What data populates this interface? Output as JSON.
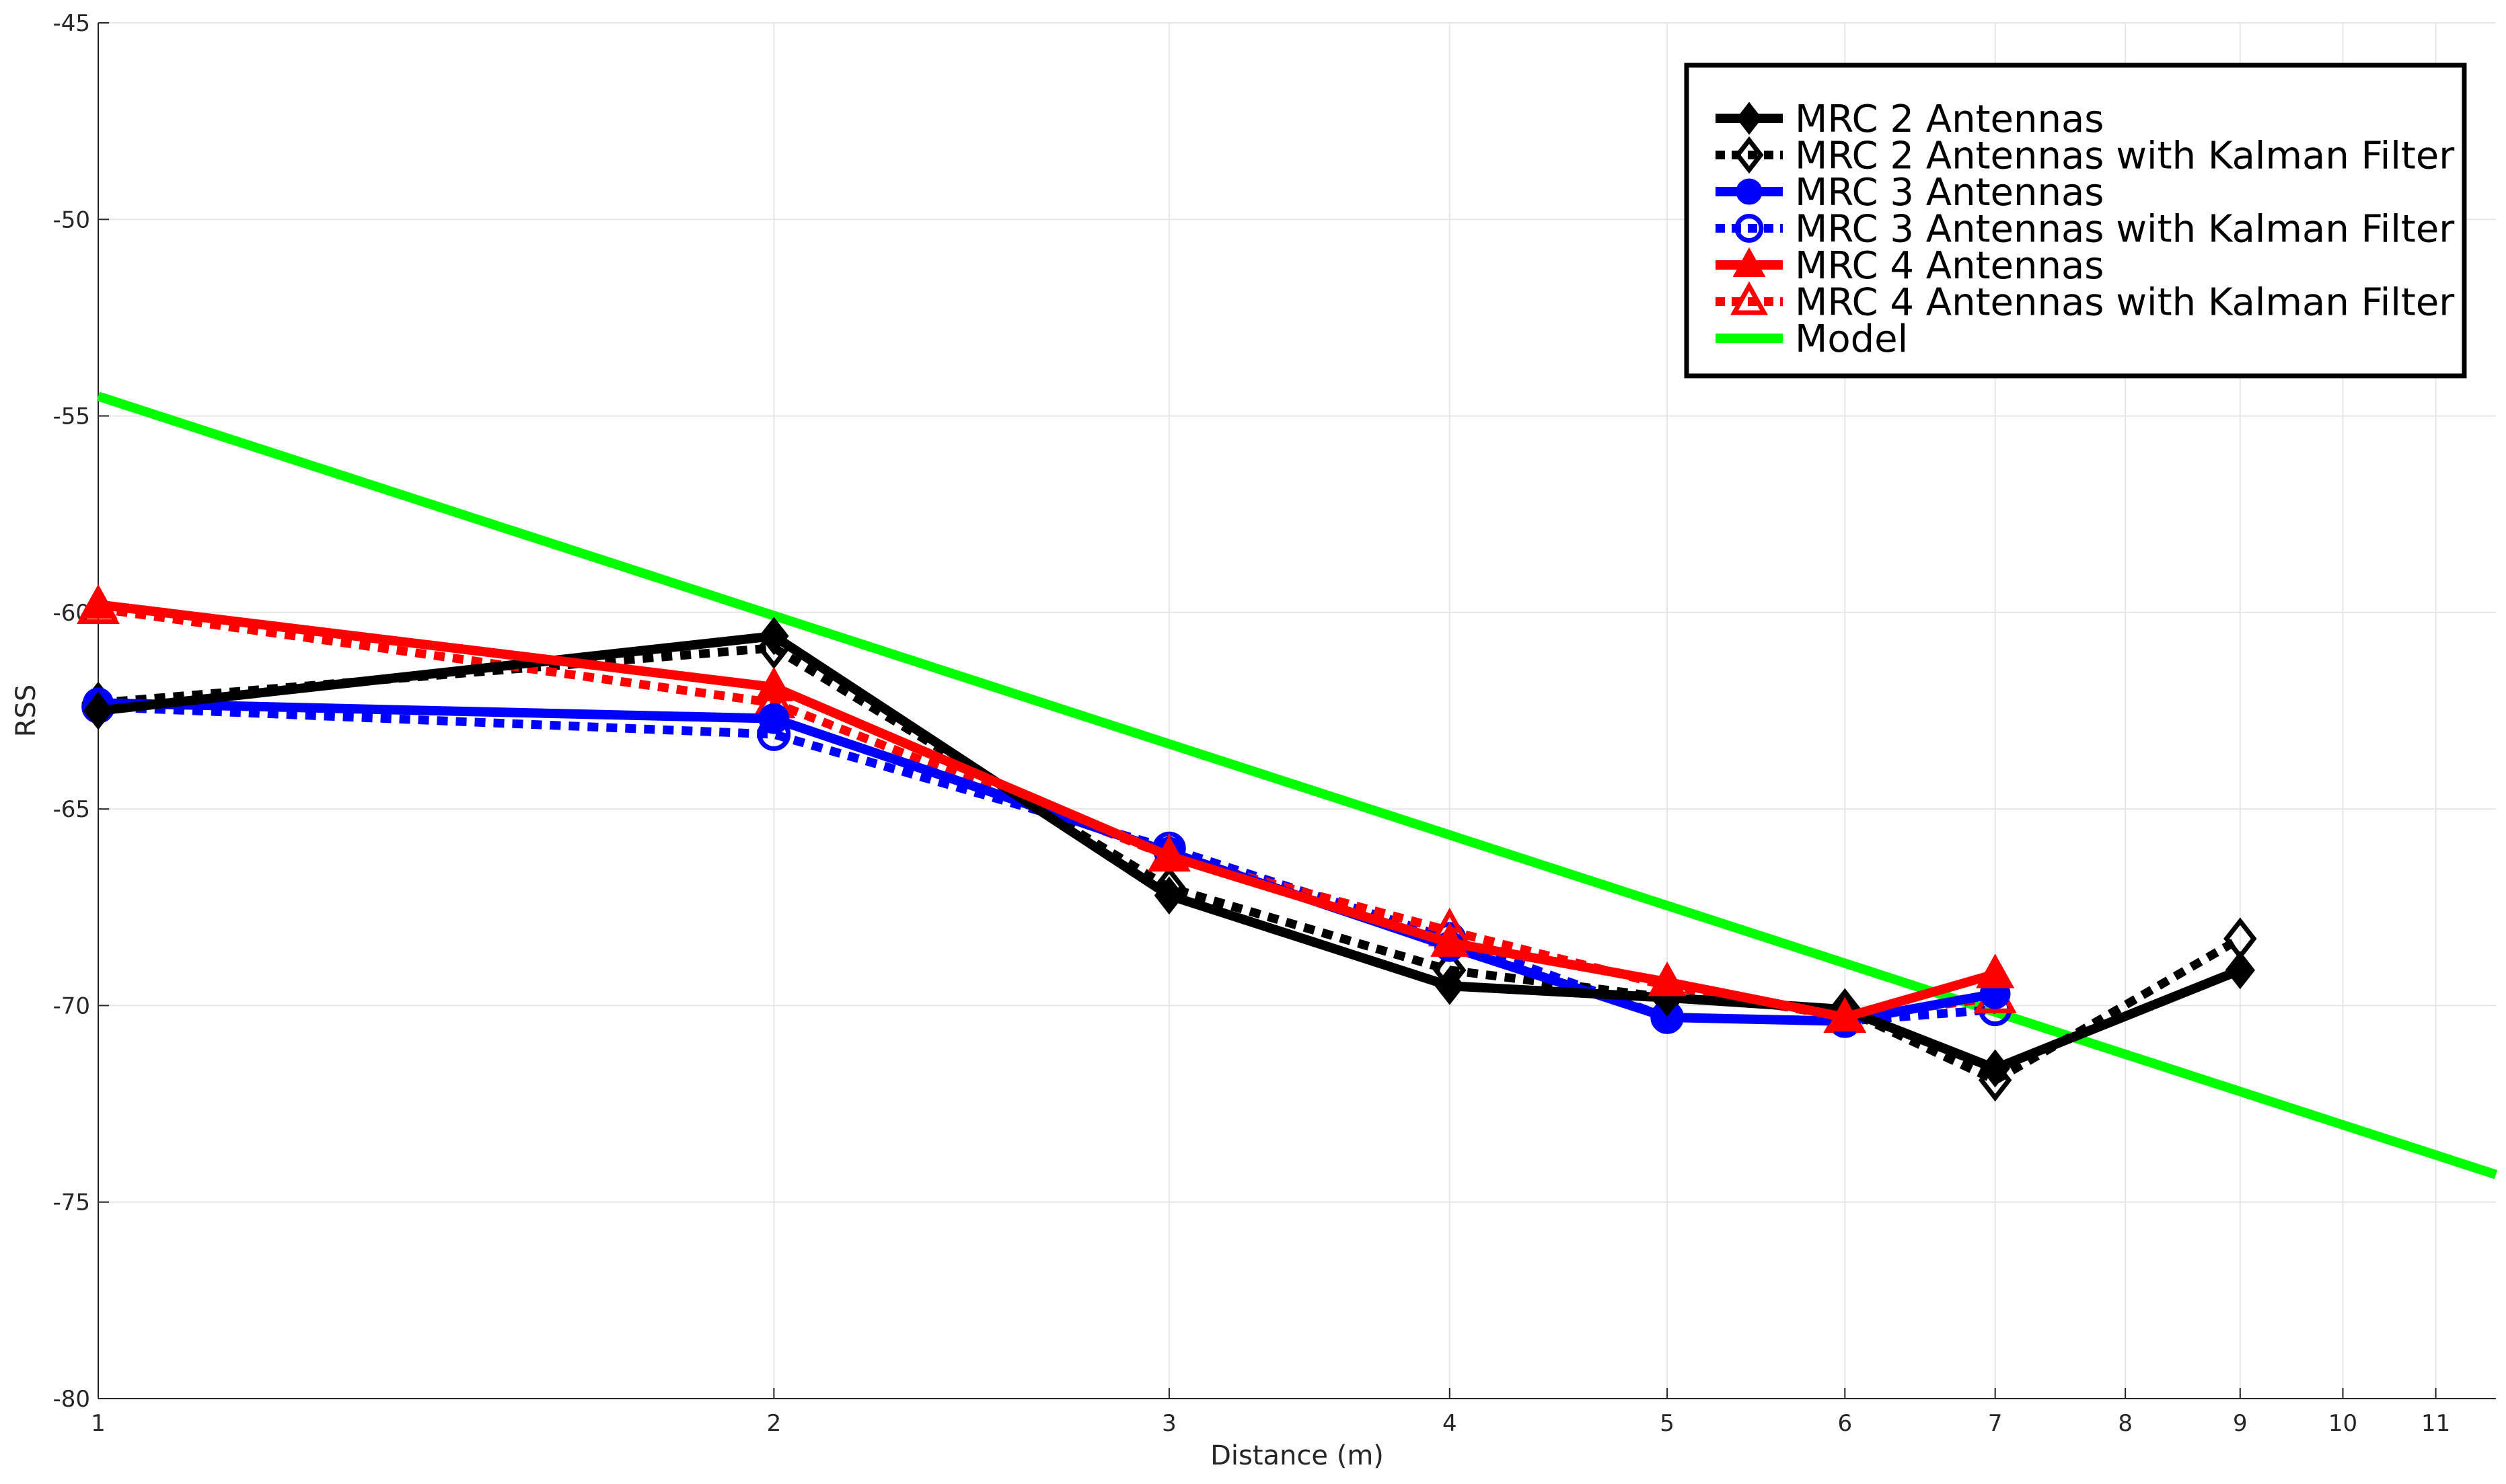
{
  "chart_data": {
    "type": "line",
    "title": "",
    "xlabel": "Distance (m)",
    "ylabel": "RSS",
    "xscale": "log",
    "xlim": [
      1,
      11.7
    ],
    "ylim": [
      -80,
      -45
    ],
    "xticks": [
      1,
      2,
      3,
      4,
      5,
      6,
      7,
      8,
      9,
      10,
      11
    ],
    "yticks": [
      -80,
      -75,
      -70,
      -65,
      -60,
      -55,
      -50,
      -45
    ],
    "grid": true,
    "legend_position": "top-right",
    "series": [
      {
        "name": "MRC 2 Antennas",
        "color": "#000000",
        "dash": "solid",
        "marker": "diamond",
        "x": [
          1,
          2,
          3,
          4,
          5,
          6,
          7,
          9
        ],
        "y": [
          -62.5,
          -60.6,
          -67.2,
          -69.5,
          -69.8,
          -70.1,
          -71.6,
          -69.1
        ]
      },
      {
        "name": "MRC 2 Antennas with Kalman Filter",
        "color": "#000000",
        "dash": "dotted",
        "marker": "diamond-open",
        "x": [
          1,
          2,
          3,
          4,
          5,
          6,
          7,
          9
        ],
        "y": [
          -62.3,
          -60.9,
          -67.0,
          -69.1,
          -69.8,
          -70.1,
          -71.9,
          -68.3
        ]
      },
      {
        "name": "MRC 3 Antennas",
        "color": "#0000ff",
        "dash": "solid",
        "marker": "circle",
        "x": [
          1,
          2,
          3,
          4,
          5,
          6,
          7
        ],
        "y": [
          -62.3,
          -62.7,
          -66.1,
          -68.5,
          -70.3,
          -70.4,
          -69.7
        ]
      },
      {
        "name": "MRC 3 Antennas with Kalman Filter",
        "color": "#0000ff",
        "dash": "dotted",
        "marker": "circle-open",
        "x": [
          1,
          2,
          3,
          4,
          5,
          6,
          7
        ],
        "y": [
          -62.4,
          -63.1,
          -66.0,
          -68.3,
          -70.3,
          -70.4,
          -70.1
        ]
      },
      {
        "name": "MRC 4 Antennas",
        "color": "#ff0000",
        "dash": "solid",
        "marker": "triangle",
        "x": [
          1,
          2,
          3,
          4,
          5,
          6,
          7
        ],
        "y": [
          -59.8,
          -61.9,
          -66.2,
          -68.4,
          -69.4,
          -70.3,
          -69.2
        ]
      },
      {
        "name": "MRC 4 Antennas with Kalman Filter",
        "color": "#ff0000",
        "dash": "dotted",
        "marker": "triangle-open",
        "x": [
          1,
          2,
          3,
          4,
          5,
          6,
          7
        ],
        "y": [
          -59.9,
          -62.3,
          -66.2,
          -68.1,
          -69.5,
          -70.3,
          -69.8
        ]
      },
      {
        "name": "Model",
        "color": "#00ff00",
        "dash": "solid",
        "marker": "none",
        "x": [
          1,
          11.7
        ],
        "y": [
          -54.5,
          -74.3
        ]
      }
    ]
  }
}
